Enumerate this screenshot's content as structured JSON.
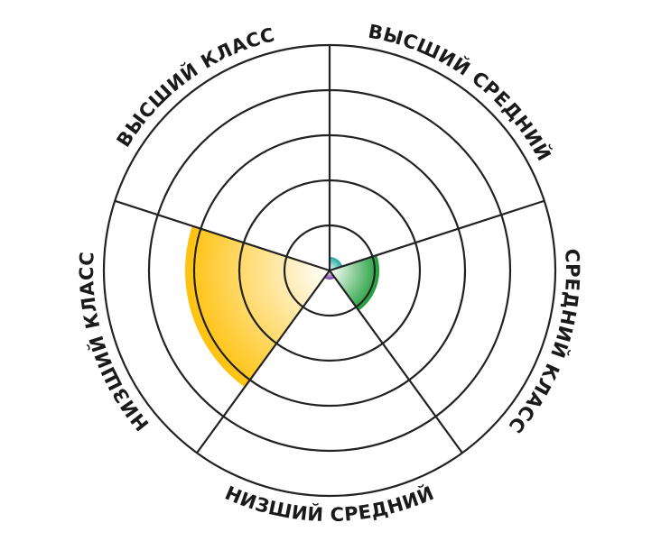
{
  "chart_data": {
    "type": "polar-area",
    "rmax": 5,
    "rings": [
      1,
      2,
      3,
      4,
      5
    ],
    "grid": true,
    "categories": [
      "ВЫСШИЙ КЛАСС",
      "ВЫСШИЙ СРЕДНИЙ",
      "СРЕДНИЙ КЛАСС",
      "НИЗШИЙ СРЕДНИЙ",
      "НИЗШИЙ КЛАСС"
    ],
    "values": [
      0,
      0.3,
      1.1,
      0.2,
      3.2
    ],
    "colors": [
      "#ffffff",
      "#1fa89c",
      "#1f9e3a",
      "#7b3fa8",
      "#ffc20e"
    ]
  }
}
